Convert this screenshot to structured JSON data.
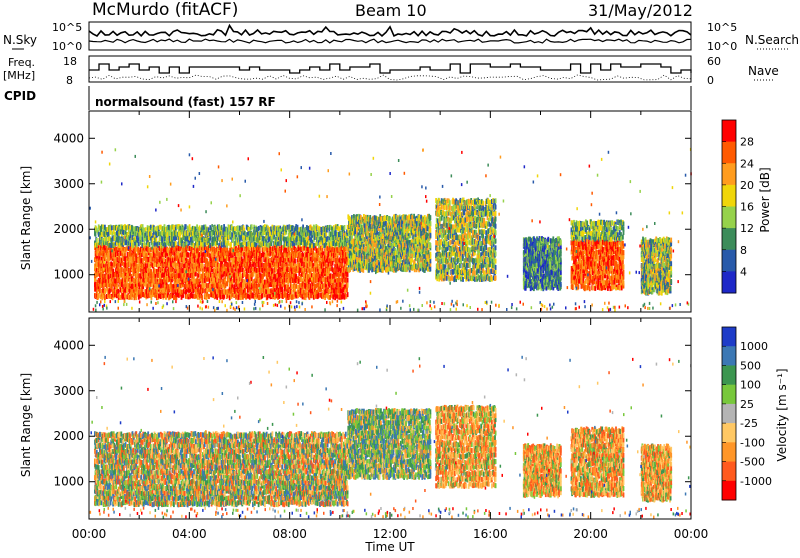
{
  "header": {
    "station": "McMurdo (fitACF)",
    "beam": "Beam 10",
    "date": "31/May/2012"
  },
  "panels": {
    "noise": {
      "left_label": "N.Sky",
      "right_label": "N.Search",
      "left_ticks": [
        "10^5",
        "10^0"
      ],
      "right_ticks": [
        "10^5",
        "10^0"
      ]
    },
    "freq": {
      "left_label_1": "Freq.",
      "left_label_2": "[MHz]",
      "right_label": "Nave",
      "left_ticks": [
        "18",
        "8"
      ],
      "right_ticks": [
        "60",
        "0"
      ]
    },
    "cpid": {
      "label": "CPID",
      "value": "normalsound (fast) 157 RF"
    }
  },
  "chart_data": [
    {
      "type": "heatmap",
      "name": "power",
      "ylabel": "Slant Range [km]",
      "yticks": [
        1000,
        2000,
        3000,
        4000
      ],
      "ylim": [
        180,
        4600
      ],
      "xlim": [
        0,
        24
      ],
      "xticks": [
        "00:00",
        "04:00",
        "08:00",
        "12:00",
        "16:00",
        "20:00",
        "00:00"
      ],
      "colorbar": {
        "label": "Power [dB]",
        "ticks": [
          "28",
          "24",
          "20",
          "16",
          "12",
          "8",
          "4"
        ],
        "colors": [
          "#ff0000",
          "#ff5a00",
          "#ff9c1e",
          "#f0d60a",
          "#96d24b",
          "#3c8c5a",
          "#285aaa",
          "#1e28c8"
        ]
      },
      "echo_regions": [
        {
          "t_start": 0.2,
          "t_end": 10.3,
          "range_lo": 500,
          "range_hi": 2100,
          "level": "strong"
        },
        {
          "t_start": 10.3,
          "t_end": 13.6,
          "range_lo": 1100,
          "range_hi": 2300,
          "level": "medium"
        },
        {
          "t_start": 13.8,
          "t_end": 16.2,
          "range_lo": 900,
          "range_hi": 2700,
          "level": "medium"
        },
        {
          "t_start": 17.3,
          "t_end": 18.8,
          "range_lo": 700,
          "range_hi": 1800,
          "level": "weak"
        },
        {
          "t_start": 19.2,
          "t_end": 21.3,
          "range_lo": 700,
          "range_hi": 2200,
          "level": "strong"
        },
        {
          "t_start": 22.0,
          "t_end": 23.2,
          "range_lo": 600,
          "range_hi": 1800,
          "level": "medium"
        }
      ]
    },
    {
      "type": "heatmap",
      "name": "velocity",
      "ylabel": "Slant Range [km]",
      "yticks": [
        1000,
        2000,
        3000,
        4000
      ],
      "ylim": [
        180,
        4600
      ],
      "xlim": [
        0,
        24
      ],
      "xticks": [
        "00:00",
        "04:00",
        "08:00",
        "12:00",
        "16:00",
        "20:00",
        "00:00"
      ],
      "xlabel": "Time UT",
      "colorbar": {
        "label": "Velocity [m s⁻¹]",
        "ticks": [
          "1000",
          "500",
          "100",
          "25",
          "-25",
          "-100",
          "-500",
          "-1000"
        ],
        "colors": [
          "#1e3cc8",
          "#3c78b4",
          "#3c9650",
          "#78c83c",
          "#b4b4b4",
          "#ffc864",
          "#ff9628",
          "#ff5a1e",
          "#ff0000"
        ]
      },
      "echo_regions": [
        {
          "t_start": 0.2,
          "t_end": 10.3,
          "range_lo": 500,
          "range_hi": 2100,
          "level": "mixed"
        },
        {
          "t_start": 10.3,
          "t_end": 13.6,
          "range_lo": 1100,
          "range_hi": 2600,
          "level": "toward"
        },
        {
          "t_start": 13.8,
          "t_end": 16.2,
          "range_lo": 900,
          "range_hi": 2700,
          "level": "away"
        },
        {
          "t_start": 17.3,
          "t_end": 18.8,
          "range_lo": 700,
          "range_hi": 1800,
          "level": "away"
        },
        {
          "t_start": 19.2,
          "t_end": 21.3,
          "range_lo": 700,
          "range_hi": 2200,
          "level": "away"
        },
        {
          "t_start": 22.0,
          "t_end": 23.2,
          "range_lo": 600,
          "range_hi": 1800,
          "level": "away"
        }
      ]
    }
  ]
}
